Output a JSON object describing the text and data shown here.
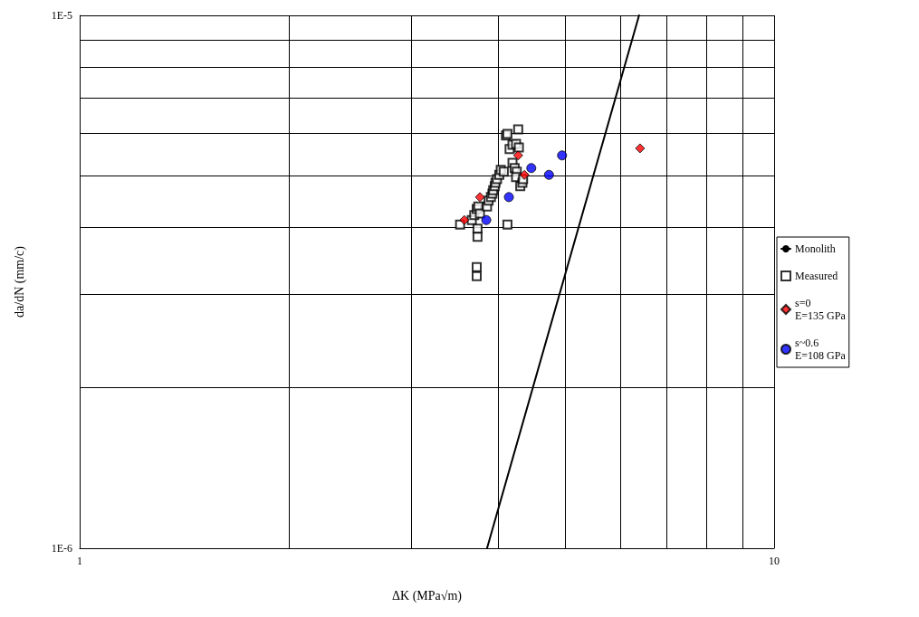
{
  "chart_data": {
    "type": "scatter",
    "xlabel": "ΔK (MPa√m)",
    "ylabel": "da/dN (mm/c)",
    "log": "xy",
    "grid": true,
    "legend": "right",
    "xlim": [
      1,
      10
    ],
    "xticks": [
      1,
      {
        "value": 2,
        "label": null
      },
      {
        "value": 3,
        "label": null
      },
      {
        "value": 4,
        "label": null
      },
      {
        "value": 5,
        "label": null
      },
      {
        "value": 6,
        "label": null
      },
      {
        "value": 7,
        "label": null
      },
      {
        "value": 8,
        "label": null
      },
      {
        "value": 9,
        "label": null
      },
      10
    ],
    "ylim": [
      1e-06,
      1e-05
    ],
    "yticks": [
      {
        "value": 1e-06,
        "label": "1E-6"
      },
      {
        "value": 2e-06,
        "label": null
      },
      {
        "value": 3e-06,
        "label": null
      },
      {
        "value": 4e-06,
        "label": null
      },
      {
        "value": 5e-06,
        "label": null
      },
      {
        "value": 6e-06,
        "label": null
      },
      {
        "value": 7e-06,
        "label": null
      },
      {
        "value": 8e-06,
        "label": null
      },
      {
        "value": 9e-06,
        "label": null
      },
      {
        "value": 1e-05,
        "label": "1E-5"
      }
    ],
    "series": [
      {
        "name": "Monolith",
        "type": "line",
        "marker": "none",
        "line_style": "solid",
        "color": "#000000",
        "x": [
          3.86,
          6.39
        ],
        "values": [
          1e-06,
          1e-05
        ]
      },
      {
        "name": "Measured",
        "marker": "square",
        "color": "#000000",
        "x": [
          3.53,
          3.67,
          3.7,
          3.73,
          3.75,
          3.77,
          3.74,
          3.74,
          3.73,
          3.73,
          3.86,
          3.88,
          3.91,
          3.93,
          3.94,
          3.96,
          3.97,
          3.99,
          4.02,
          4.04,
          4.08,
          4.11,
          4.13,
          4.15,
          4.16,
          4.2,
          4.25,
          4.28,
          4.29,
          4.2,
          4.23,
          4.26,
          4.25,
          4.31,
          4.34,
          4.35,
          4.13
        ],
        "values": [
          4.05e-06,
          4.13e-06,
          4.22e-06,
          4.33e-06,
          4.38e-06,
          4.25e-06,
          3.98e-06,
          3.84e-06,
          3.37e-06,
          3.24e-06,
          4.38e-06,
          4.49e-06,
          4.56e-06,
          4.63e-06,
          4.7e-06,
          4.78e-06,
          4.85e-06,
          4.93e-06,
          5.02e-06,
          5.13e-06,
          5.09e-06,
          5.95e-06,
          5.99e-06,
          null,
          5.61e-06,
          5.72e-06,
          5.74e-06,
          6.11e-06,
          5.65e-06,
          5.29e-06,
          5.17e-06,
          5.09e-06,
          4.97e-06,
          4.78e-06,
          4.85e-06,
          4.93e-06,
          4.05e-06
        ]
      },
      {
        "name": "s=0\nE=135 GPa",
        "marker": "diamond",
        "color": "#ff0000",
        "x": [
          3.58,
          3.77,
          4.28,
          4.37,
          6.41
        ],
        "values": [
          4.13e-06,
          4.56e-06,
          5.46e-06,
          5.02e-06,
          5.63e-06
        ]
      },
      {
        "name": "s~0.6\nE=108 GPa",
        "marker": "circle",
        "color": "#0000ff",
        "x": [
          3.85,
          4.15,
          4.47,
          4.74,
          4.95
        ],
        "values": [
          4.13e-06,
          4.56e-06,
          5.17e-06,
          5.02e-06,
          5.46e-06
        ]
      }
    ]
  }
}
